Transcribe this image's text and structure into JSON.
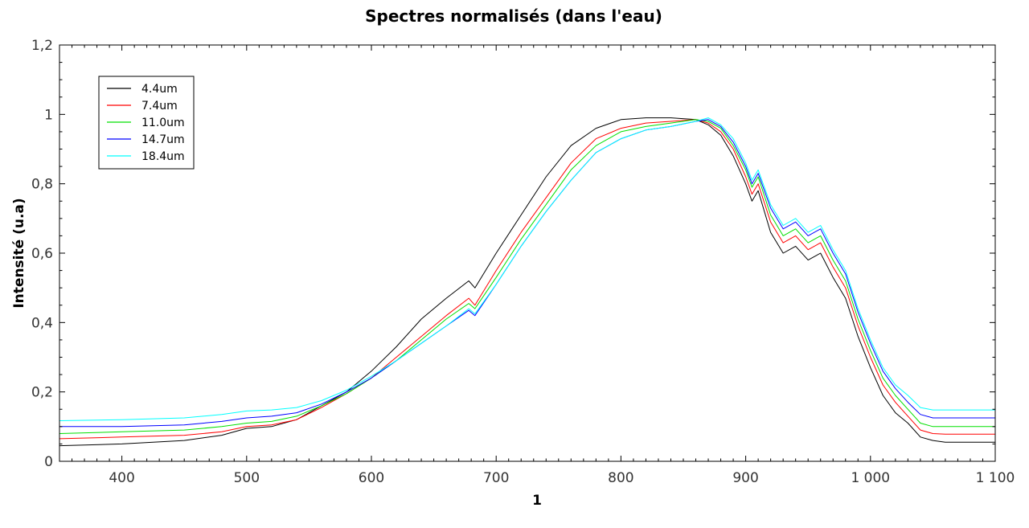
{
  "chart_data": {
    "type": "line",
    "title": "Spectres normalisés (dans l'eau)",
    "xlabel": "1",
    "ylabel": "Intensité (u.a)",
    "xlim": [
      350,
      1100
    ],
    "ylim": [
      0,
      1.2
    ],
    "x_ticks": [
      400,
      500,
      600,
      700,
      800,
      900,
      1000,
      1100
    ],
    "x_tick_labels": [
      "400",
      "500",
      "600",
      "700",
      "800",
      "900",
      "1 000",
      "1 100"
    ],
    "y_ticks": [
      0,
      0.2,
      0.4,
      0.6,
      0.8,
      1,
      1.2
    ],
    "y_tick_labels": [
      "0",
      "0,2",
      "0,4",
      "0,6",
      "0,8",
      "1",
      "1,2"
    ],
    "grid": false,
    "legend_position": "top-left",
    "x": [
      350,
      400,
      450,
      480,
      500,
      520,
      540,
      560,
      580,
      600,
      620,
      640,
      660,
      678,
      683,
      700,
      720,
      740,
      760,
      780,
      800,
      820,
      840,
      860,
      870,
      880,
      890,
      900,
      905,
      910,
      920,
      930,
      940,
      950,
      960,
      970,
      980,
      990,
      1000,
      1010,
      1020,
      1030,
      1040,
      1050,
      1060,
      1080,
      1100
    ],
    "series": [
      {
        "name": "4.4um",
        "color": "#000000",
        "values": [
          0.045,
          0.05,
          0.06,
          0.075,
          0.095,
          0.1,
          0.12,
          0.16,
          0.2,
          0.26,
          0.33,
          0.41,
          0.47,
          0.52,
          0.5,
          0.6,
          0.71,
          0.82,
          0.91,
          0.96,
          0.985,
          0.99,
          0.99,
          0.985,
          0.97,
          0.94,
          0.88,
          0.8,
          0.75,
          0.78,
          0.66,
          0.6,
          0.62,
          0.58,
          0.6,
          0.53,
          0.47,
          0.36,
          0.27,
          0.19,
          0.14,
          0.11,
          0.07,
          0.06,
          0.055,
          0.055,
          0.055
        ]
      },
      {
        "name": "7.4um",
        "color": "#ff0000",
        "values": [
          0.065,
          0.07,
          0.075,
          0.085,
          0.1,
          0.105,
          0.12,
          0.155,
          0.195,
          0.24,
          0.3,
          0.36,
          0.42,
          0.47,
          0.45,
          0.55,
          0.66,
          0.76,
          0.86,
          0.93,
          0.96,
          0.975,
          0.98,
          0.985,
          0.975,
          0.95,
          0.9,
          0.82,
          0.77,
          0.8,
          0.69,
          0.63,
          0.65,
          0.61,
          0.63,
          0.56,
          0.5,
          0.39,
          0.3,
          0.22,
          0.17,
          0.13,
          0.09,
          0.08,
          0.078,
          0.078,
          0.078
        ]
      },
      {
        "name": "11.0um",
        "color": "#00e000",
        "values": [
          0.08,
          0.085,
          0.09,
          0.1,
          0.11,
          0.115,
          0.13,
          0.16,
          0.195,
          0.24,
          0.29,
          0.35,
          0.41,
          0.455,
          0.44,
          0.53,
          0.64,
          0.74,
          0.84,
          0.91,
          0.95,
          0.965,
          0.975,
          0.985,
          0.98,
          0.96,
          0.91,
          0.84,
          0.79,
          0.82,
          0.71,
          0.65,
          0.67,
          0.63,
          0.65,
          0.58,
          0.52,
          0.41,
          0.32,
          0.24,
          0.19,
          0.15,
          0.11,
          0.1,
          0.1,
          0.1,
          0.1
        ]
      },
      {
        "name": "14.7um",
        "color": "#0000ff",
        "values": [
          0.1,
          0.1,
          0.105,
          0.115,
          0.125,
          0.13,
          0.14,
          0.165,
          0.2,
          0.24,
          0.29,
          0.34,
          0.39,
          0.435,
          0.42,
          0.51,
          0.62,
          0.72,
          0.81,
          0.89,
          0.93,
          0.955,
          0.965,
          0.98,
          0.985,
          0.965,
          0.92,
          0.85,
          0.8,
          0.83,
          0.73,
          0.67,
          0.69,
          0.65,
          0.67,
          0.6,
          0.54,
          0.43,
          0.34,
          0.26,
          0.21,
          0.17,
          0.135,
          0.125,
          0.125,
          0.125,
          0.125
        ]
      },
      {
        "name": "18.4um",
        "color": "#00ffff",
        "values": [
          0.117,
          0.12,
          0.125,
          0.135,
          0.145,
          0.148,
          0.155,
          0.175,
          0.205,
          0.245,
          0.29,
          0.34,
          0.39,
          0.44,
          0.425,
          0.51,
          0.62,
          0.72,
          0.81,
          0.89,
          0.93,
          0.955,
          0.965,
          0.98,
          0.99,
          0.97,
          0.93,
          0.86,
          0.81,
          0.84,
          0.74,
          0.68,
          0.7,
          0.66,
          0.68,
          0.61,
          0.55,
          0.44,
          0.35,
          0.27,
          0.22,
          0.19,
          0.155,
          0.148,
          0.148,
          0.148,
          0.148
        ]
      }
    ]
  }
}
